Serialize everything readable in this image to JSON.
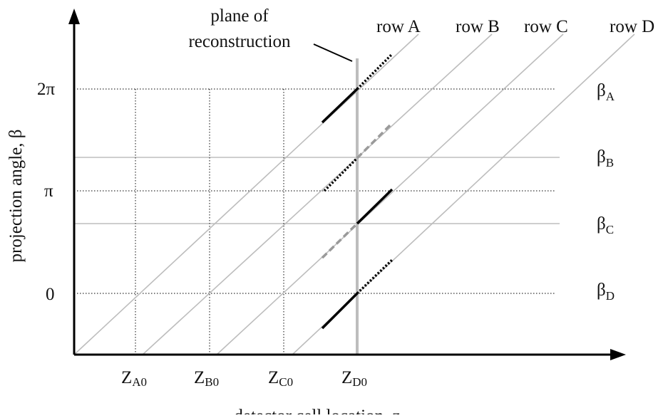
{
  "diagram": {
    "annotation": {
      "line1": "plane of",
      "line2": "reconstruction"
    },
    "row_labels": [
      "row A",
      "row B",
      "row C",
      "row D"
    ],
    "y_ticks": [
      {
        "label": "2π",
        "beta_fraction": 2
      },
      {
        "label": "π",
        "beta_fraction": 1
      },
      {
        "label": "0",
        "beta_fraction": 0
      }
    ],
    "beta_labels": [
      {
        "main": "β",
        "sub": "A"
      },
      {
        "main": "β",
        "sub": "B"
      },
      {
        "main": "β",
        "sub": "C"
      },
      {
        "main": "β",
        "sub": "D"
      }
    ],
    "z_labels": [
      {
        "main": "Z",
        "sub": "A0"
      },
      {
        "main": "Z",
        "sub": "B0"
      },
      {
        "main": "Z",
        "sub": "C0"
      },
      {
        "main": "Z",
        "sub": "D0"
      }
    ],
    "y_axis_label": "projection angle, β",
    "x_axis_label": "detector cell location, z",
    "colors": {
      "line": "#bdbdbd",
      "axis": "#000000",
      "dotted": "#333333",
      "solid": "#000000",
      "dashed": "#9a9a9a"
    }
  }
}
